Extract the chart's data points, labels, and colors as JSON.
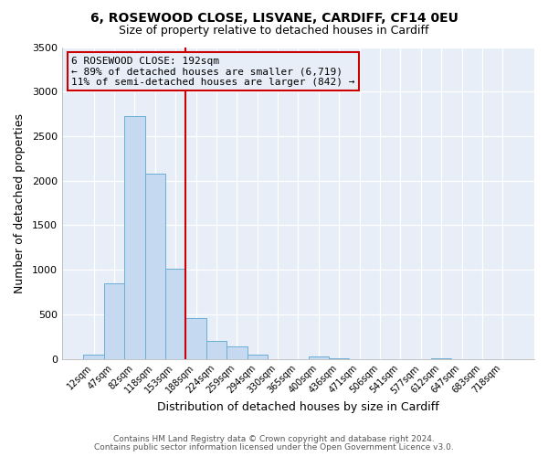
{
  "title1": "6, ROSEWOOD CLOSE, LISVANE, CARDIFF, CF14 0EU",
  "title2": "Size of property relative to detached houses in Cardiff",
  "xlabel": "Distribution of detached houses by size in Cardiff",
  "ylabel": "Number of detached properties",
  "bar_labels": [
    "12sqm",
    "47sqm",
    "82sqm",
    "118sqm",
    "153sqm",
    "188sqm",
    "224sqm",
    "259sqm",
    "294sqm",
    "330sqm",
    "365sqm",
    "400sqm",
    "436sqm",
    "471sqm",
    "506sqm",
    "541sqm",
    "577sqm",
    "612sqm",
    "647sqm",
    "683sqm",
    "718sqm"
  ],
  "bar_values": [
    50,
    850,
    2725,
    2075,
    1010,
    460,
    200,
    145,
    50,
    0,
    0,
    25,
    10,
    0,
    0,
    0,
    0,
    5,
    0,
    0,
    0
  ],
  "bar_color": "#c5d9f0",
  "bar_edgecolor": "#6baed6",
  "vline_x": 4.5,
  "vline_color": "#cc0000",
  "annotation_line1": "6 ROSEWOOD CLOSE: 192sqm",
  "annotation_line2": "← 89% of detached houses are smaller (6,719)",
  "annotation_line3": "11% of semi-detached houses are larger (842) →",
  "annotation_box_color": "#cc0000",
  "ylim": [
    0,
    3500
  ],
  "yticks": [
    0,
    500,
    1000,
    1500,
    2000,
    2500,
    3000,
    3500
  ],
  "footer1": "Contains HM Land Registry data © Crown copyright and database right 2024.",
  "footer2": "Contains public sector information licensed under the Open Government Licence v3.0.",
  "bg_color": "#ffffff",
  "plot_bg_color": "#e8eef8"
}
